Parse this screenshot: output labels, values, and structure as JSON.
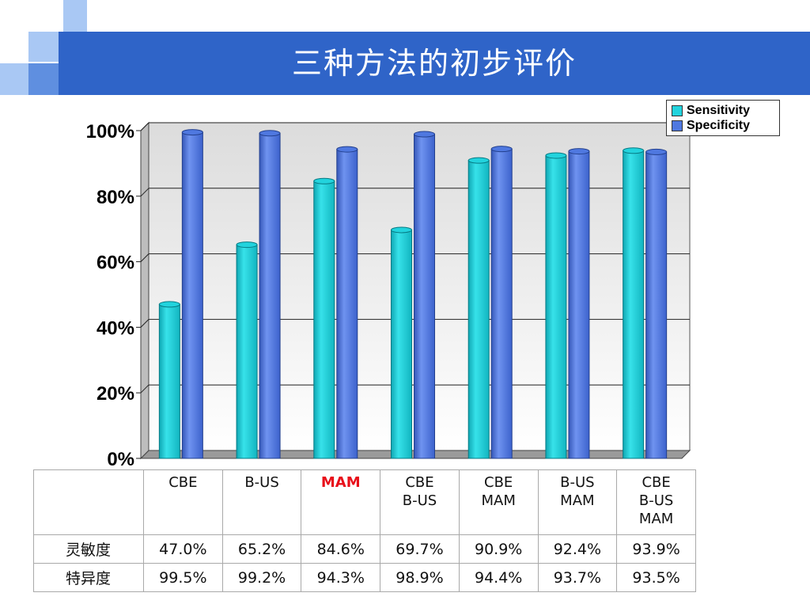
{
  "slide": {
    "title": "三种方法的初步评价",
    "colors": {
      "title_bar": "#2f64c8",
      "decor_light": "#a9c8f4",
      "decor_mid": "#5f8fe0"
    }
  },
  "chart_data": {
    "type": "bar",
    "categories": [
      "CBE",
      "B-US",
      "MAM",
      "CBE B-US",
      "CBE MAM",
      "B-US MAM",
      "CBE B-US MAM"
    ],
    "series": [
      {
        "name": "Sensitivity",
        "color": "#22d3dd",
        "values": [
          47.0,
          65.2,
          84.6,
          69.7,
          90.9,
          92.4,
          93.9
        ]
      },
      {
        "name": "Specificity",
        "color": "#4f78e0",
        "values": [
          99.5,
          99.2,
          94.3,
          98.9,
          94.4,
          93.7,
          93.5
        ]
      }
    ],
    "yticks": [
      "0%",
      "20%",
      "40%",
      "60%",
      "80%",
      "100%"
    ],
    "ylim": [
      0,
      100
    ],
    "grid": true,
    "legend": "top-right"
  },
  "table": {
    "headers": [
      [
        "CBE"
      ],
      [
        "B-US"
      ],
      [
        "MAM"
      ],
      [
        "CBE",
        "B-US"
      ],
      [
        "CBE",
        "MAM"
      ],
      [
        "B-US",
        "MAM"
      ],
      [
        "CBE",
        "B-US",
        "MAM"
      ]
    ],
    "rows": [
      {
        "label": "灵敏度",
        "values": [
          "47.0%",
          "65.2%",
          "84.6%",
          "69.7%",
          "90.9%",
          "92.4%",
          "93.9%"
        ]
      },
      {
        "label": "特异度",
        "values": [
          "99.5%",
          "99.2%",
          "94.3%",
          "98.9%",
          "94.4%",
          "93.7%",
          "93.5%"
        ]
      }
    ]
  }
}
